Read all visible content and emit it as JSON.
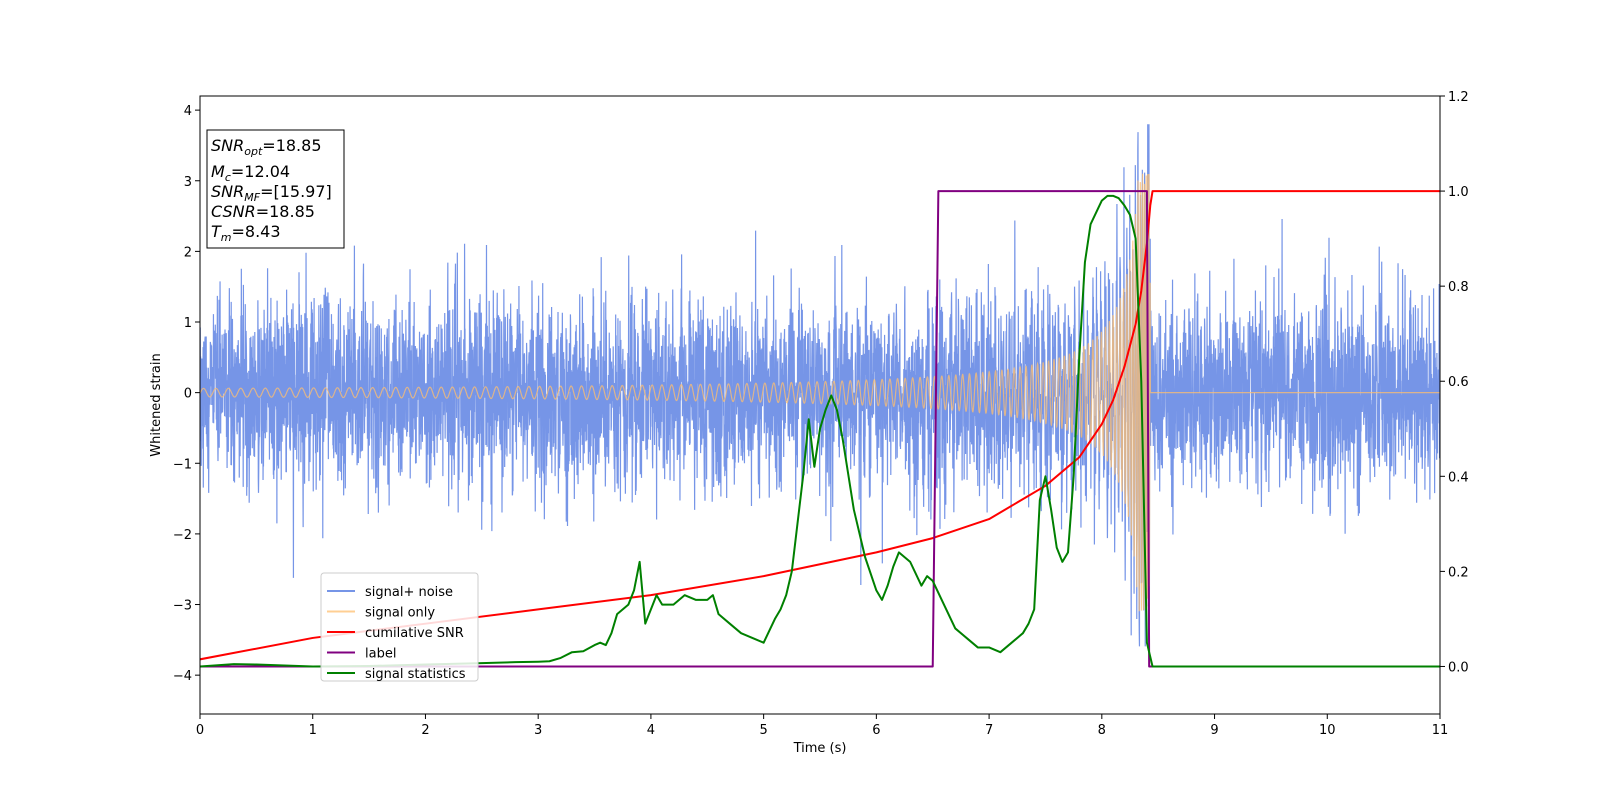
{
  "chart_data": {
    "type": "line",
    "xlabel": "Time (s)",
    "ylabel": "Whitened strain",
    "xlim": [
      0,
      11
    ],
    "ylim": [
      -4.55,
      4.2
    ],
    "ylim_right": [
      -0.1,
      1.2
    ],
    "xticks": [
      "0",
      "1",
      "2",
      "3",
      "4",
      "5",
      "6",
      "7",
      "8",
      "9",
      "10",
      "11"
    ],
    "yticks": [
      "4",
      "3",
      "2",
      "1",
      "0",
      "−1",
      "−2",
      "−3",
      "−4"
    ],
    "yticks_right": [
      "1.2",
      "1.0",
      "0.8",
      "0.6",
      "0.4",
      "0.2",
      "0.0"
    ],
    "legend_position": "lower-left",
    "info_box_position": "upper-left",
    "info_box": {
      "snr_opt_main": "SNR",
      "snr_opt_sub": "opt",
      "snr_opt_value": "=18.85",
      "mc_main": "M",
      "mc_sub": "c",
      "mc_value": "=12.04",
      "snr_mf_main": "SNR",
      "snr_mf_sub": "MF",
      "snr_mf_value": "=[15.97]",
      "csnr_main": "CSNR",
      "csnr_value": "=18.85",
      "tm_main": "T",
      "tm_sub": "m",
      "tm_value": "=8.43"
    },
    "series": [
      {
        "name": "signal+ noise",
        "color": "#6f8fe6",
        "axis": "left",
        "noise_std": 0.65,
        "x_range": [
          0,
          11
        ],
        "ymax_observed": 3.8,
        "ymin_observed": -4.15
      },
      {
        "name": "signal only",
        "color": "#ffbf6f",
        "axis": "left",
        "chirp_start": 0,
        "chirp_end": 8.43,
        "amp_start": 0.06,
        "amp_peak": 3.1,
        "after_value": 0
      },
      {
        "name": "cumilative SNR",
        "color": "#ff0000",
        "axis": "right",
        "x": [
          0,
          1,
          2,
          3,
          4,
          5,
          6,
          6.5,
          7,
          7.5,
          7.8,
          8,
          8.1,
          8.2,
          8.3,
          8.35,
          8.4,
          8.43,
          8.45,
          8.6,
          10,
          11
        ],
        "y": [
          0.015,
          0.06,
          0.09,
          0.12,
          0.15,
          0.19,
          0.24,
          0.27,
          0.31,
          0.38,
          0.44,
          0.51,
          0.56,
          0.63,
          0.72,
          0.79,
          0.89,
          0.97,
          1.0,
          1.0,
          1.0,
          1.0
        ]
      },
      {
        "name": "label",
        "color": "#800080",
        "axis": "right",
        "x": [
          0,
          6.5,
          6.55,
          8.4,
          8.42,
          11
        ],
        "y": [
          0,
          0,
          1,
          1,
          0,
          0
        ]
      },
      {
        "name": "signal statistics",
        "color": "#008000",
        "axis": "right",
        "x": [
          0,
          0.3,
          0.5,
          1,
          1.5,
          2,
          2.5,
          2.8,
          3.0,
          3.1,
          3.2,
          3.3,
          3.4,
          3.5,
          3.55,
          3.6,
          3.65,
          3.7,
          3.75,
          3.8,
          3.85,
          3.9,
          3.95,
          4.0,
          4.05,
          4.1,
          4.2,
          4.3,
          4.4,
          4.5,
          4.55,
          4.6,
          4.7,
          4.8,
          4.9,
          5.0,
          5.1,
          5.15,
          5.2,
          5.25,
          5.3,
          5.35,
          5.4,
          5.45,
          5.5,
          5.55,
          5.6,
          5.65,
          5.7,
          5.8,
          5.9,
          6.0,
          6.05,
          6.1,
          6.15,
          6.2,
          6.3,
          6.4,
          6.45,
          6.5,
          6.6,
          6.7,
          6.8,
          6.9,
          7.0,
          7.1,
          7.2,
          7.3,
          7.35,
          7.4,
          7.45,
          7.5,
          7.55,
          7.6,
          7.65,
          7.7,
          7.75,
          7.8,
          7.85,
          7.9,
          8.0,
          8.05,
          8.1,
          8.15,
          8.2,
          8.25,
          8.3,
          8.35,
          8.4,
          8.45,
          8.5,
          9,
          10,
          11
        ],
        "y": [
          0.0,
          0.005,
          0.004,
          0.0,
          0.001,
          0.004,
          0.007,
          0.009,
          0.01,
          0.011,
          0.018,
          0.03,
          0.032,
          0.045,
          0.05,
          0.045,
          0.07,
          0.11,
          0.12,
          0.13,
          0.16,
          0.22,
          0.09,
          0.12,
          0.15,
          0.13,
          0.13,
          0.15,
          0.14,
          0.14,
          0.15,
          0.11,
          0.09,
          0.07,
          0.06,
          0.05,
          0.1,
          0.12,
          0.15,
          0.2,
          0.3,
          0.4,
          0.52,
          0.42,
          0.5,
          0.54,
          0.57,
          0.54,
          0.48,
          0.33,
          0.23,
          0.16,
          0.14,
          0.17,
          0.21,
          0.24,
          0.22,
          0.17,
          0.19,
          0.18,
          0.13,
          0.08,
          0.06,
          0.04,
          0.04,
          0.03,
          0.05,
          0.07,
          0.09,
          0.12,
          0.35,
          0.4,
          0.33,
          0.25,
          0.22,
          0.24,
          0.4,
          0.65,
          0.85,
          0.93,
          0.98,
          0.99,
          0.99,
          0.985,
          0.97,
          0.95,
          0.9,
          0.6,
          0.05,
          0.0,
          0.0,
          0.0,
          0.0,
          0.0
        ]
      }
    ]
  }
}
